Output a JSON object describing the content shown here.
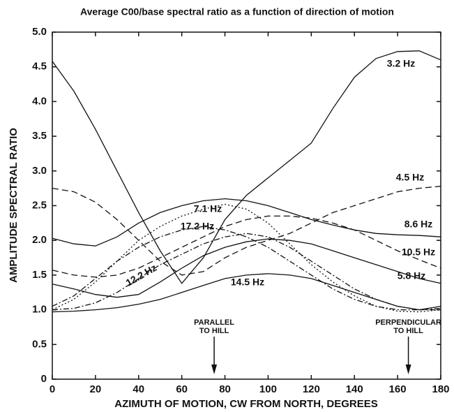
{
  "chart_data": {
    "type": "line",
    "title": "Average C00/base spectral ratio as a function of direction of motion",
    "x_label": "AZIMUTH OF MOTION, CW FROM NORTH, DEGREES",
    "y_label": "AMPLITUDE SPECTRAL RATIO",
    "x": [
      0,
      10,
      20,
      30,
      40,
      50,
      60,
      70,
      80,
      90,
      100,
      110,
      120,
      130,
      140,
      150,
      160,
      170,
      180
    ],
    "xlim": [
      0,
      180
    ],
    "xticks": [
      0,
      20,
      40,
      60,
      80,
      100,
      120,
      140,
      160,
      180
    ],
    "ylim": [
      0,
      5
    ],
    "yticks": [
      0,
      0.5,
      {
        "value": 1,
        "label": "1.0"
      },
      1.5,
      {
        "value": 2,
        "label": "2.0"
      },
      2.5,
      {
        "value": 3,
        "label": "3.0"
      },
      3.5,
      {
        "value": 4,
        "label": "4.0"
      },
      4.5,
      {
        "value": 5,
        "label": "5.0"
      }
    ],
    "series": [
      {
        "name": "3.2 Hz",
        "color": "#111",
        "style": "solid",
        "values": [
          4.58,
          4.15,
          3.6,
          3.0,
          2.4,
          1.85,
          1.38,
          1.75,
          2.3,
          2.65,
          2.9,
          3.15,
          3.4,
          3.9,
          4.35,
          4.62,
          4.72,
          4.73,
          4.6
        ]
      },
      {
        "name": "4.5 Hz",
        "color": "#111",
        "style": "dashed",
        "values": [
          2.75,
          2.7,
          2.55,
          2.3,
          2.0,
          1.7,
          1.5,
          1.55,
          1.75,
          1.9,
          2.0,
          2.1,
          2.25,
          2.4,
          2.5,
          2.6,
          2.7,
          2.75,
          2.78
        ]
      },
      {
        "name": "7.1 Hz",
        "color": "#111",
        "style": "dotted",
        "values": [
          1.0,
          1.15,
          1.4,
          1.7,
          2.0,
          2.2,
          2.35,
          2.45,
          2.52,
          2.45,
          2.25,
          1.95,
          1.65,
          1.4,
          1.2,
          1.05,
          0.98,
          0.97,
          1.0
        ]
      },
      {
        "name": "17.2 Hz",
        "color": "#111",
        "style": "dashdot",
        "values": [
          1.05,
          1.2,
          1.45,
          1.7,
          1.9,
          2.05,
          2.15,
          2.2,
          2.15,
          2.05,
          1.9,
          1.7,
          1.5,
          1.3,
          1.15,
          1.05,
          1.0,
          1.0,
          1.02
        ]
      },
      {
        "name": "8.6 Hz",
        "color": "#111",
        "style": "solid",
        "values": [
          2.03,
          1.95,
          1.92,
          2.05,
          2.25,
          2.4,
          2.5,
          2.57,
          2.6,
          2.57,
          2.5,
          2.4,
          2.3,
          2.22,
          2.15,
          2.1,
          2.08,
          2.07,
          2.05
        ]
      },
      {
        "name": "10.5 Hz",
        "color": "#111",
        "style": "dashed",
        "values": [
          1.57,
          1.5,
          1.47,
          1.5,
          1.6,
          1.75,
          1.9,
          2.05,
          2.2,
          2.3,
          2.35,
          2.35,
          2.32,
          2.25,
          2.15,
          2.0,
          1.85,
          1.72,
          1.6
        ]
      },
      {
        "name": "12.2 Hz",
        "color": "#111",
        "style": "dashdot",
        "values": [
          1.0,
          1.02,
          1.1,
          1.25,
          1.45,
          1.65,
          1.8,
          1.95,
          2.05,
          2.1,
          2.05,
          1.9,
          1.7,
          1.5,
          1.3,
          1.15,
          1.05,
          1.0,
          1.0
        ]
      },
      {
        "name": "5.8 Hz",
        "color": "#111",
        "style": "solid",
        "values": [
          1.37,
          1.3,
          1.22,
          1.18,
          1.22,
          1.4,
          1.6,
          1.78,
          1.9,
          1.98,
          2.02,
          2.0,
          1.95,
          1.85,
          1.75,
          1.65,
          1.55,
          1.45,
          1.38
        ]
      },
      {
        "name": "14.5 Hz",
        "color": "#111",
        "style": "solid",
        "values": [
          0.97,
          0.98,
          1.0,
          1.03,
          1.08,
          1.15,
          1.25,
          1.35,
          1.45,
          1.5,
          1.52,
          1.5,
          1.45,
          1.35,
          1.25,
          1.15,
          1.05,
          1.0,
          1.05
        ]
      }
    ],
    "annotations": [
      {
        "lines": [
          "PARALLEL",
          "TO HILL"
        ],
        "x": 75
      },
      {
        "lines": [
          "PERPENDICULAR",
          "TO HILL"
        ],
        "x": 165
      }
    ]
  }
}
